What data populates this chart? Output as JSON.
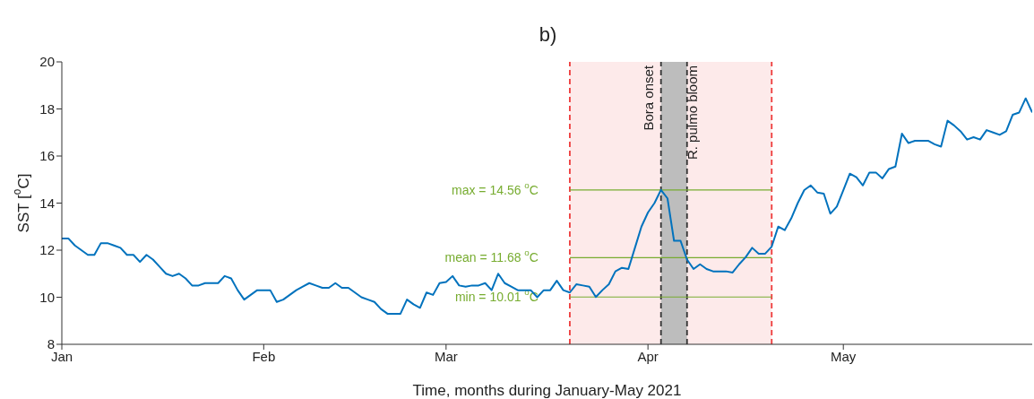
{
  "chart_data": {
    "type": "line",
    "title": "b)",
    "xlabel": "Time, months during January-May 2021",
    "ylabel": "SST [$^{o}$C]",
    "x": [
      "2021-01-01",
      "2021-01-02",
      "2021-01-03",
      "2021-01-04",
      "2021-01-05",
      "2021-01-06",
      "2021-01-07",
      "2021-01-08",
      "2021-01-09",
      "2021-01-10",
      "2021-01-11",
      "2021-01-12",
      "2021-01-13",
      "2021-01-14",
      "2021-01-15",
      "2021-01-16",
      "2021-01-17",
      "2021-01-18",
      "2021-01-19",
      "2021-01-20",
      "2021-01-21",
      "2021-01-22",
      "2021-01-23",
      "2021-01-24",
      "2021-01-25",
      "2021-01-26",
      "2021-01-27",
      "2021-01-28",
      "2021-01-29",
      "2021-01-30",
      "2021-01-31",
      "2021-02-01",
      "2021-02-02",
      "2021-02-03",
      "2021-02-04",
      "2021-02-05",
      "2021-02-06",
      "2021-02-07",
      "2021-02-08",
      "2021-02-09",
      "2021-02-10",
      "2021-02-11",
      "2021-02-12",
      "2021-02-13",
      "2021-02-14",
      "2021-02-15",
      "2021-02-16",
      "2021-02-17",
      "2021-02-18",
      "2021-02-19",
      "2021-02-20",
      "2021-02-21",
      "2021-02-22",
      "2021-02-23",
      "2021-02-24",
      "2021-02-25",
      "2021-02-26",
      "2021-02-27",
      "2021-02-28",
      "2021-03-01",
      "2021-03-02",
      "2021-03-03",
      "2021-03-04",
      "2021-03-05",
      "2021-03-06",
      "2021-03-07",
      "2021-03-08",
      "2021-03-09",
      "2021-03-10",
      "2021-03-11",
      "2021-03-12",
      "2021-03-13",
      "2021-03-14",
      "2021-03-15",
      "2021-03-16",
      "2021-03-17",
      "2021-03-18",
      "2021-03-19",
      "2021-03-20",
      "2021-03-21",
      "2021-03-22",
      "2021-03-23",
      "2021-03-24",
      "2021-03-25",
      "2021-03-26",
      "2021-03-27",
      "2021-03-28",
      "2021-03-29",
      "2021-03-30",
      "2021-03-31",
      "2021-04-01",
      "2021-04-02",
      "2021-04-03",
      "2021-04-04",
      "2021-04-05",
      "2021-04-06",
      "2021-04-07",
      "2021-04-08",
      "2021-04-09",
      "2021-04-10",
      "2021-04-11",
      "2021-04-12",
      "2021-04-13",
      "2021-04-14",
      "2021-04-15",
      "2021-04-16",
      "2021-04-17",
      "2021-04-18",
      "2021-04-19",
      "2021-04-20",
      "2021-04-21",
      "2021-04-22",
      "2021-04-23",
      "2021-04-24",
      "2021-04-25",
      "2021-04-26",
      "2021-04-27",
      "2021-04-28",
      "2021-04-29",
      "2021-04-30",
      "2021-05-01",
      "2021-05-02",
      "2021-05-03",
      "2021-05-04",
      "2021-05-05",
      "2021-05-06",
      "2021-05-07",
      "2021-05-08",
      "2021-05-09",
      "2021-05-10",
      "2021-05-11",
      "2021-05-12",
      "2021-05-13",
      "2021-05-14",
      "2021-05-15",
      "2021-05-16",
      "2021-05-17",
      "2021-05-18",
      "2021-05-19",
      "2021-05-20",
      "2021-05-21",
      "2021-05-22",
      "2021-05-23",
      "2021-05-24",
      "2021-05-25",
      "2021-05-26",
      "2021-05-27",
      "2021-05-28",
      "2021-05-29",
      "2021-05-30"
    ],
    "series": [
      {
        "color": "#0072bd",
        "values": [
          12.5,
          12.5,
          12.2,
          12.0,
          11.8,
          11.8,
          12.3,
          12.3,
          12.2,
          12.1,
          11.8,
          11.8,
          11.5,
          11.8,
          11.6,
          11.3,
          11.0,
          10.9,
          11.0,
          10.8,
          10.5,
          10.5,
          10.6,
          10.6,
          10.6,
          10.9,
          10.8,
          10.3,
          9.9,
          10.1,
          10.3,
          10.3,
          10.3,
          9.8,
          9.9,
          10.1,
          10.3,
          10.45,
          10.6,
          10.5,
          10.4,
          10.4,
          10.6,
          10.4,
          10.4,
          10.2,
          10.0,
          9.9,
          9.8,
          9.5,
          9.3,
          9.3,
          9.3,
          9.9,
          9.7,
          9.55,
          10.2,
          10.1,
          10.6,
          10.65,
          10.9,
          10.5,
          10.45,
          10.5,
          10.5,
          10.6,
          10.3,
          11.0,
          10.6,
          10.45,
          10.3,
          10.3,
          10.3,
          10.0,
          10.3,
          10.3,
          10.7,
          10.3,
          10.2,
          10.55,
          10.5,
          10.45,
          10.01,
          10.3,
          10.55,
          11.1,
          11.25,
          11.2,
          12.1,
          13.0,
          13.6,
          14.0,
          14.56,
          14.2,
          12.4,
          12.4,
          11.6,
          11.2,
          11.4,
          11.2,
          11.1,
          11.1,
          11.1,
          11.05,
          11.4,
          11.7,
          12.1,
          11.85,
          11.85,
          12.15,
          13.0,
          12.85,
          13.35,
          14.0,
          14.55,
          14.75,
          14.45,
          14.4,
          13.55,
          13.85,
          14.55,
          15.25,
          15.1,
          14.75,
          15.3,
          15.3,
          15.05,
          15.45,
          15.55,
          16.95,
          16.55,
          16.65,
          16.65,
          16.65,
          16.5,
          16.4,
          17.5,
          17.3,
          17.05,
          16.7,
          16.8,
          16.7,
          17.1,
          17.0,
          16.9,
          17.05,
          17.75,
          17.85,
          18.45,
          17.85
        ]
      }
    ],
    "xlim": [
      "2021-01-01",
      "2021-05-30"
    ],
    "xticks": [
      {
        "value": "2021-01-01",
        "label": "Jan"
      },
      {
        "value": "2021-02-01",
        "label": "Feb"
      },
      {
        "value": "2021-03-01",
        "label": "Mar"
      },
      {
        "value": "2021-04-01",
        "label": "Apr"
      },
      {
        "value": "2021-05-01",
        "label": "May"
      }
    ],
    "ylim": [
      8,
      20
    ],
    "yticks": [
      8,
      10,
      12,
      14,
      16,
      18,
      20
    ],
    "bands": [
      {
        "axis": "x",
        "from": "2021-03-20",
        "to": "2021-04-20",
        "color": "#fdeaea"
      },
      {
        "axis": "x",
        "from": "2021-04-03",
        "to": "2021-04-07",
        "color": "#bdbdbd"
      }
    ],
    "ref_lines": [
      {
        "axis": "x",
        "value": "2021-03-20",
        "color": "#ee3b3b",
        "line_style": "dashed"
      },
      {
        "axis": "x",
        "value": "2021-04-20",
        "color": "#ee3b3b",
        "line_style": "dashed"
      },
      {
        "axis": "x",
        "value": "2021-04-03",
        "label": "Bora onset",
        "color": "#333333",
        "line_style": "dashed"
      },
      {
        "axis": "x",
        "value": "2021-04-07",
        "label": "R. pulmo bloom",
        "color": "#333333",
        "line_style": "dashed"
      },
      {
        "axis": "y",
        "value": 14.56,
        "label": "max = 14.56 $^{o}$C",
        "color": "#77ac30",
        "line_style": "solid"
      },
      {
        "axis": "y",
        "value": 11.68,
        "label": "mean = 11.68 $^{o}$C",
        "color": "#77ac30",
        "line_style": "solid"
      },
      {
        "axis": "y",
        "value": 10.01,
        "label": "min = 10.01 $^{o}$C",
        "color": "#77ac30",
        "line_style": "solid"
      }
    ]
  }
}
